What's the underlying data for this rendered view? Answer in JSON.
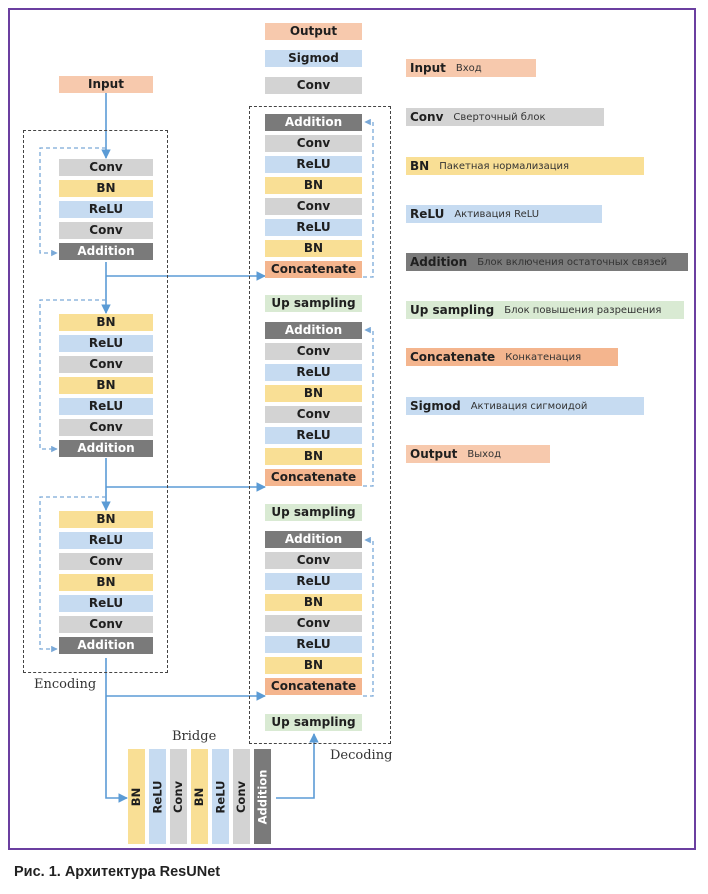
{
  "input": "Input",
  "encoding": {
    "label": "Encoding",
    "block1": [
      "Conv",
      "BN",
      "ReLU",
      "Conv",
      "Addition"
    ],
    "block2": [
      "BN",
      "ReLU",
      "Conv",
      "BN",
      "ReLU",
      "Conv",
      "Addition"
    ],
    "block3": [
      "BN",
      "ReLU",
      "Conv",
      "BN",
      "ReLU",
      "Conv",
      "Addition"
    ]
  },
  "bridge": {
    "label": "Bridge",
    "items": [
      "BN",
      "ReLU",
      "Conv",
      "BN",
      "ReLU",
      "Conv",
      "Addition"
    ]
  },
  "decoding": {
    "label": "Decoding",
    "top": [
      "Output",
      "Sigmod",
      "Conv"
    ],
    "block1": [
      "Addition",
      "Conv",
      "ReLU",
      "BN",
      "Conv",
      "ReLU",
      "BN",
      "Concatenate",
      "Up sampling"
    ],
    "block2": [
      "Addition",
      "Conv",
      "ReLU",
      "BN",
      "Conv",
      "ReLU",
      "BN",
      "Concatenate",
      "Up sampling"
    ],
    "block3": [
      "Addition",
      "Conv",
      "ReLU",
      "BN",
      "Conv",
      "ReLU",
      "BN",
      "Concatenate",
      "Up sampling"
    ]
  },
  "legend": [
    {
      "key": "Input",
      "desc": "Вход",
      "color": "#f7c9ad"
    },
    {
      "key": "Conv",
      "desc": "Сверточный блок",
      "color": "#d3d3d3"
    },
    {
      "key": "BN",
      "desc": "Пакетная нормализация",
      "color": "#f9df95"
    },
    {
      "key": "ReLU",
      "desc": "Активация ReLU",
      "color": "#c6dbf1"
    },
    {
      "key": "Addition",
      "desc": "Блок включения остаточных связей",
      "color": "#7a7a7a"
    },
    {
      "key": "Up sampling",
      "desc": "Блок повышения разрешения",
      "color": "#d9ead3"
    },
    {
      "key": "Concatenate",
      "desc": "Конкатенация",
      "color": "#f4b58e"
    },
    {
      "key": "Sigmod",
      "desc": "Активация сигмоидой",
      "color": "#c6dbf1"
    },
    {
      "key": "Output",
      "desc": "Выход",
      "color": "#f7c9ad"
    }
  ],
  "caption": "Рис. 1. Архитектура ResUNet"
}
